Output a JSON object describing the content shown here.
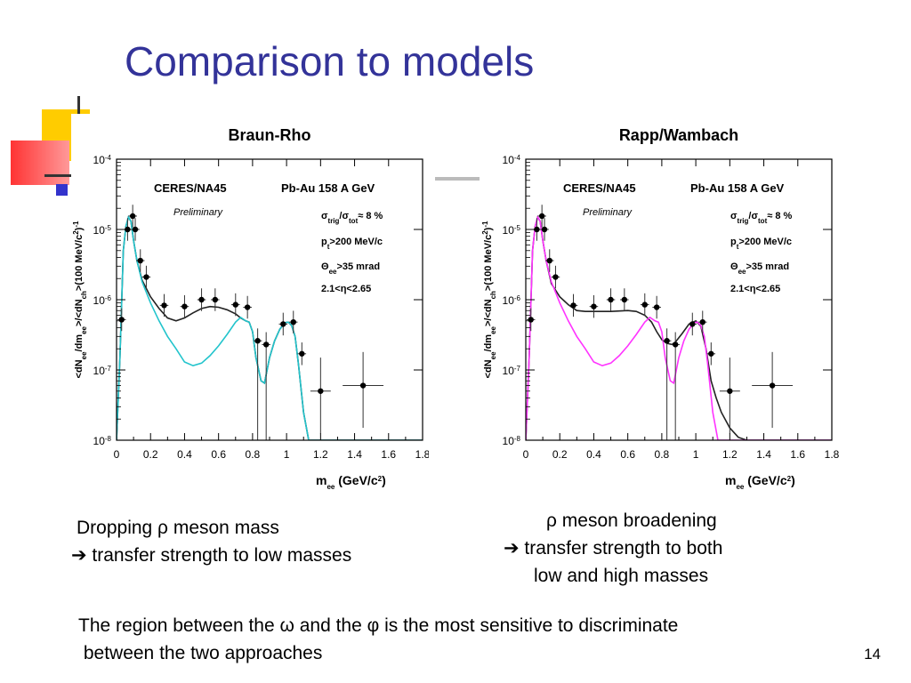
{
  "slide": {
    "title": "Comparison to models",
    "page_number": "14",
    "left_caption": [
      "Dropping ρ meson mass",
      "➔ transfer strength to low masses"
    ],
    "right_caption": [
      "ρ meson broadening",
      "➔  transfer strength to  both",
      "low and high masses"
    ],
    "bottom_text": [
      "The region between the ω and the φ is the most sensitive to discriminate",
      " between the two approaches"
    ]
  },
  "colors": {
    "title": "#333399",
    "data_points": "#000000",
    "model_left": "#22c4cc",
    "model_right": "#ff33ff",
    "reference_curve": "#222222"
  },
  "chart_data": [
    {
      "type": "scatter",
      "title": "Braun-Rho",
      "panel_experiment": "CERES/NA45",
      "panel_system": "Pb-Au 158 A GeV",
      "panel_status": "Preliminary",
      "cuts": [
        "σtrig/σtot ≈ 8 %",
        "pt>200 MeV/c",
        "Θee>35 mrad",
        "2.1<η<2.65"
      ],
      "xlabel": "mee (GeV/c2)",
      "ylabel": "<dNee/dmee>/<dNch>(100 MeV/c2)-1",
      "xlim": [
        0,
        1.8
      ],
      "ylim": [
        1e-08,
        0.0001
      ],
      "yscale": "log",
      "xticks": [
        "0",
        "0.2",
        "0.4",
        "0.6",
        "0.8",
        "1",
        "1.2",
        "1.4",
        "1.6",
        "1.8"
      ],
      "yticks": [
        {
          "base": "10",
          "exp": "-4",
          "value": 0.0001
        },
        {
          "base": "10",
          "exp": "-5",
          "value": 1e-05
        },
        {
          "base": "10",
          "exp": "-6",
          "value": 1e-06
        },
        {
          "base": "10",
          "exp": "-7",
          "value": 1e-07
        },
        {
          "base": "10",
          "exp": "-8",
          "value": 1e-08
        }
      ],
      "data_points": {
        "x": [
          0.03,
          0.065,
          0.095,
          0.11,
          0.14,
          0.175,
          0.28,
          0.4,
          0.5,
          0.58,
          0.7,
          0.77,
          0.83,
          0.88,
          0.98,
          1.04,
          1.09,
          1.2,
          1.45
        ],
        "y": [
          5.2e-07,
          1e-05,
          1.55e-05,
          1e-05,
          3.6e-06,
          2.1e-06,
          8.3e-07,
          8e-07,
          1e-06,
          1e-06,
          8.5e-07,
          7.8e-07,
          2.6e-07,
          2.3e-07,
          4.5e-07,
          4.8e-07,
          1.7e-07,
          5e-08,
          6e-08
        ]
      },
      "series": [
        {
          "name": "",
          "x": [
            0.0,
            0.02,
            0.04,
            0.055,
            0.07,
            0.085,
            0.1,
            0.12,
            0.15,
            0.2,
            0.25,
            0.3,
            0.35,
            0.4,
            0.45,
            0.5,
            0.55,
            0.6,
            0.65,
            0.7,
            0.73,
            0.76,
            0.78,
            0.8,
            0.82,
            0.85,
            0.87,
            0.9,
            0.93,
            0.96,
            0.99,
            1.01,
            1.03,
            1.05,
            1.07,
            1.1,
            1.13,
            1.16,
            1.2,
            1.4,
            1.8
          ],
          "y": [
            1e-08,
            1.5e-07,
            5e-06,
            1.1e-05,
            1.5e-05,
            1.3e-05,
            7e-06,
            3.6e-06,
            1.9e-06,
            1.1e-06,
            7.5e-07,
            5.5e-07,
            5e-07,
            5.5e-07,
            6.5e-07,
            7.5e-07,
            8e-07,
            7.8e-07,
            7.2e-07,
            6.3e-07,
            5.5e-07,
            5e-07,
            4.8e-07,
            3.5e-07,
            1.5e-07,
            7e-08,
            6.5e-08,
            1.5e-07,
            2.6e-07,
            3.8e-07,
            4.7e-07,
            4.8e-07,
            4.3e-07,
            3e-07,
            1.2e-07,
            2.5e-08,
            1e-08,
            1e-08,
            1e-08,
            1e-08,
            1e-08
          ]
        },
        {
          "name": "",
          "x": [
            0.0,
            0.02,
            0.04,
            0.055,
            0.07,
            0.085,
            0.1,
            0.12,
            0.15,
            0.2,
            0.25,
            0.3,
            0.35,
            0.4,
            0.45,
            0.5,
            0.55,
            0.6,
            0.65,
            0.7,
            0.73,
            0.76,
            0.78,
            0.8,
            0.82,
            0.85,
            0.87,
            0.9,
            0.93,
            0.96,
            0.99,
            1.01,
            1.03,
            1.05,
            1.07,
            1.1,
            1.13,
            1.16,
            1.2,
            1.4,
            1.8
          ],
          "y": [
            1e-08,
            1.5e-07,
            5e-06,
            1.1e-05,
            1.5e-05,
            1.3e-05,
            7e-06,
            3.6e-06,
            1.8e-06,
            9e-07,
            5e-07,
            3e-07,
            2e-07,
            1.3e-07,
            1.15e-07,
            1.25e-07,
            1.6e-07,
            2.2e-07,
            3.2e-07,
            4.8e-07,
            5.6e-07,
            5e-07,
            4.8e-07,
            3.5e-07,
            1.5e-07,
            7e-08,
            6.5e-08,
            1.5e-07,
            2.6e-07,
            3.8e-07,
            4.7e-07,
            4.8e-07,
            4.3e-07,
            3e-07,
            1.2e-07,
            2.5e-08,
            1e-08,
            1e-08,
            1e-08,
            1e-08,
            1e-08
          ]
        }
      ]
    },
    {
      "type": "scatter",
      "title": "Rapp/Wambach",
      "panel_experiment": "CERES/NA45",
      "panel_system": "Pb-Au 158 A GeV",
      "panel_status": "Preliminary",
      "cuts": [
        "σtrig/σtot ≈ 8 %",
        "pt>200 MeV/c",
        "Θee>35 mrad",
        "2.1<η<2.65"
      ],
      "xlabel": "mee (GeV/c2)",
      "ylabel": "<dNee/dmee>/<dNch>(100 MeV/c2)-1",
      "xlim": [
        0,
        1.8
      ],
      "ylim": [
        1e-08,
        0.0001
      ],
      "yscale": "log",
      "xticks": [
        "0",
        "0.2",
        "0.4",
        "0.6",
        "0.8",
        "1",
        "1.2",
        "1.4",
        "1.6",
        "1.8"
      ],
      "yticks": [
        {
          "base": "10",
          "exp": "-4",
          "value": 0.0001
        },
        {
          "base": "10",
          "exp": "-5",
          "value": 1e-05
        },
        {
          "base": "10",
          "exp": "-6",
          "value": 1e-06
        },
        {
          "base": "10",
          "exp": "-7",
          "value": 1e-07
        },
        {
          "base": "10",
          "exp": "-8",
          "value": 1e-08
        }
      ],
      "data_points": {
        "x": [
          0.03,
          0.065,
          0.095,
          0.11,
          0.14,
          0.175,
          0.28,
          0.4,
          0.5,
          0.58,
          0.7,
          0.77,
          0.83,
          0.88,
          0.98,
          1.04,
          1.09,
          1.2,
          1.45
        ],
        "y": [
          5.2e-07,
          1e-05,
          1.55e-05,
          1e-05,
          3.6e-06,
          2.1e-06,
          8.3e-07,
          8e-07,
          1e-06,
          1e-06,
          8.5e-07,
          7.8e-07,
          2.6e-07,
          2.3e-07,
          4.5e-07,
          4.8e-07,
          1.7e-07,
          5e-08,
          6e-08
        ]
      },
      "series": [
        {
          "name": "",
          "x": [
            0.0,
            0.02,
            0.04,
            0.055,
            0.07,
            0.085,
            0.1,
            0.12,
            0.15,
            0.2,
            0.25,
            0.3,
            0.35,
            0.4,
            0.5,
            0.6,
            0.65,
            0.7,
            0.74,
            0.77,
            0.8,
            0.83,
            0.86,
            0.88,
            0.92,
            0.96,
            1.0,
            1.03,
            1.06,
            1.09,
            1.12,
            1.15,
            1.2,
            1.25,
            1.3,
            1.4,
            1.8
          ],
          "y": [
            1e-08,
            1.5e-07,
            5e-06,
            1.1e-05,
            1.5e-05,
            1.3e-05,
            7e-06,
            3.6e-06,
            1.7e-06,
            1.1e-06,
            8.5e-07,
            7e-07,
            6.8e-07,
            6.8e-07,
            6.8e-07,
            7e-07,
            6.8e-07,
            6e-07,
            4.8e-07,
            3.5e-07,
            2.7e-07,
            2.4e-07,
            2.3e-07,
            2.5e-07,
            3.3e-07,
            4.5e-07,
            5e-07,
            4.2e-07,
            2e-07,
            7e-08,
            4e-08,
            2.5e-08,
            1.5e-08,
            1.1e-08,
            1e-08,
            1e-08,
            1e-08
          ]
        },
        {
          "name": "",
          "x": [
            0.0,
            0.02,
            0.04,
            0.055,
            0.07,
            0.085,
            0.1,
            0.12,
            0.15,
            0.2,
            0.25,
            0.3,
            0.35,
            0.4,
            0.45,
            0.5,
            0.55,
            0.6,
            0.65,
            0.7,
            0.73,
            0.76,
            0.78,
            0.8,
            0.82,
            0.85,
            0.87,
            0.9,
            0.93,
            0.96,
            0.99,
            1.01,
            1.03,
            1.05,
            1.07,
            1.1,
            1.13,
            1.16,
            1.2,
            1.4,
            1.8
          ],
          "y": [
            1e-08,
            1.5e-07,
            5e-06,
            1.1e-05,
            1.5e-05,
            1.3e-05,
            7e-06,
            3.6e-06,
            1.8e-06,
            9e-07,
            5e-07,
            3e-07,
            2e-07,
            1.3e-07,
            1.15e-07,
            1.25e-07,
            1.6e-07,
            2.2e-07,
            3.2e-07,
            4.8e-07,
            5.6e-07,
            5e-07,
            4.8e-07,
            3.5e-07,
            1.5e-07,
            7e-08,
            6.5e-08,
            1.5e-07,
            2.6e-07,
            3.8e-07,
            4.7e-07,
            4.8e-07,
            4.3e-07,
            3e-07,
            1.2e-07,
            2.5e-08,
            1e-08,
            1e-08,
            1e-08,
            1e-08,
            1e-08
          ]
        }
      ]
    }
  ]
}
